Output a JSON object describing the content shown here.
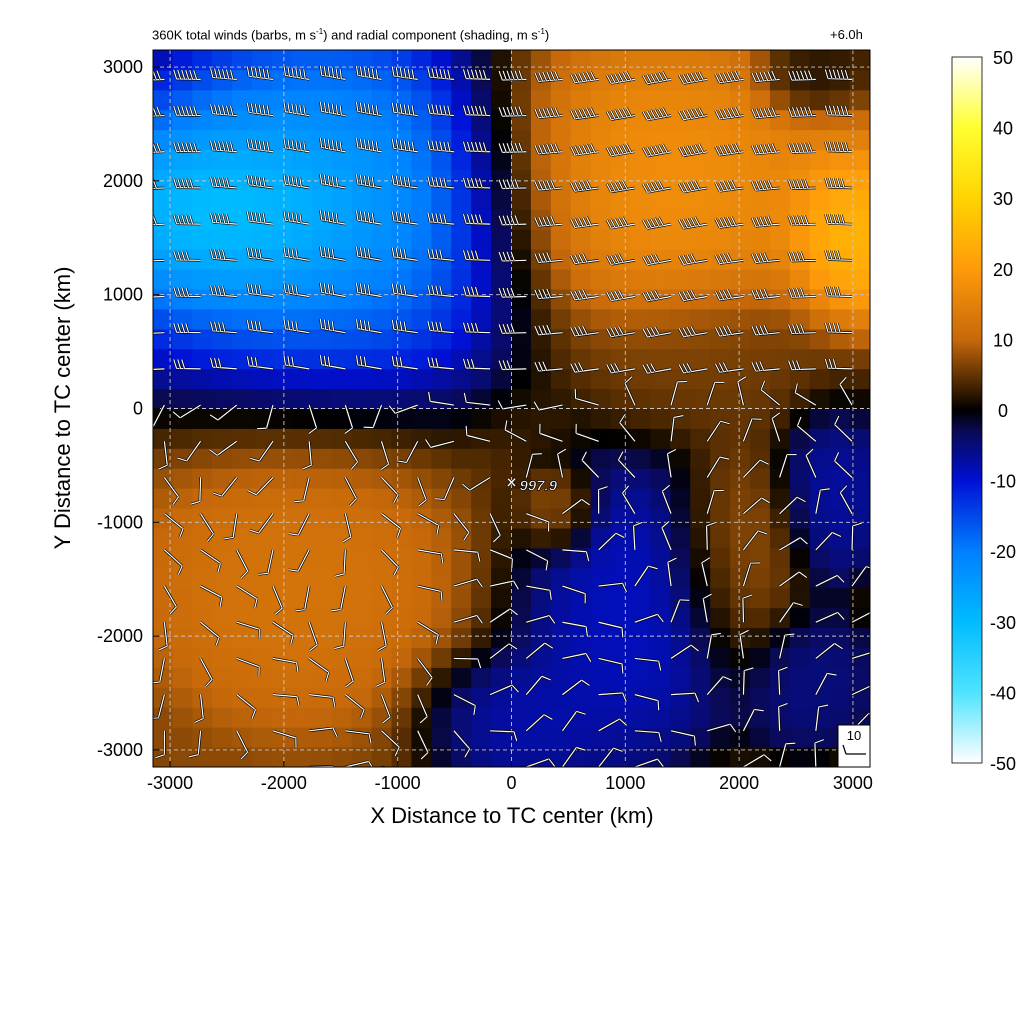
{
  "header": {
    "title_prefix": "360K total winds (barbs, m s",
    "title_mid": ") and radial component (shading, m s",
    "title_suffix": ")",
    "title_exp": "-1",
    "forecast_time": "+6.0h"
  },
  "center_marker": {
    "label": "997.9"
  },
  "barb_key": {
    "label": "10"
  },
  "chart_data": {
    "type": "heatmap",
    "xlabel": "X Distance to TC center (km)",
    "ylabel": "Y Distance to TC center (km)",
    "xlim": [
      -3150,
      3150
    ],
    "ylim": [
      -3150,
      3150
    ],
    "xticks": [
      -3000,
      -2000,
      -1000,
      0,
      1000,
      2000,
      3000
    ],
    "yticks": [
      -3000,
      -2000,
      -1000,
      0,
      1000,
      2000,
      3000
    ],
    "colorbar": {
      "range": [
        -50,
        50
      ],
      "ticks": [
        -50,
        -40,
        -30,
        -20,
        -10,
        0,
        10,
        20,
        30,
        40,
        50
      ],
      "stops": [
        {
          "value": -50,
          "color": "#ffffff"
        },
        {
          "value": -40,
          "color": "#4fe3ff"
        },
        {
          "value": -30,
          "color": "#00bcff"
        },
        {
          "value": -20,
          "color": "#007fff"
        },
        {
          "value": -10,
          "color": "#0010d6"
        },
        {
          "value": -3,
          "color": "#0a0a55"
        },
        {
          "value": 0,
          "color": "#000000"
        },
        {
          "value": 3,
          "color": "#3d2000"
        },
        {
          "value": 10,
          "color": "#c7690a"
        },
        {
          "value": 20,
          "color": "#ff9a0a"
        },
        {
          "value": 30,
          "color": "#ffd400"
        },
        {
          "value": 40,
          "color": "#ffff30"
        },
        {
          "value": 50,
          "color": "#ffffff"
        }
      ]
    },
    "grid": true,
    "field_blobs": [
      {
        "x": -2300,
        "y": 1700,
        "rx": 1100,
        "ry": 700,
        "value": -45
      },
      {
        "x": -1600,
        "y": 1900,
        "rx": 1300,
        "ry": 1100,
        "value": -28
      },
      {
        "x": -1800,
        "y": 1500,
        "rx": 1600,
        "ry": 1400,
        "value": -18
      },
      {
        "x": 1300,
        "y": 2000,
        "rx": 1500,
        "ry": 1200,
        "value": 20
      },
      {
        "x": 3000,
        "y": 1500,
        "rx": 500,
        "ry": 700,
        "value": 28
      },
      {
        "x": 2600,
        "y": 2900,
        "rx": 400,
        "ry": 300,
        "value": 0
      },
      {
        "x": -1900,
        "y": -1500,
        "rx": 1500,
        "ry": 1400,
        "value": 14
      },
      {
        "x": 400,
        "y": -900,
        "rx": 300,
        "ry": 350,
        "value": 10
      },
      {
        "x": 1000,
        "y": -1800,
        "rx": 900,
        "ry": 1100,
        "value": -10
      },
      {
        "x": 0,
        "y": -2700,
        "rx": 700,
        "ry": 500,
        "value": -9
      },
      {
        "x": 2800,
        "y": -700,
        "rx": 400,
        "ry": 700,
        "value": -8
      },
      {
        "x": 2600,
        "y": -2400,
        "rx": 500,
        "ry": 500,
        "value": -6
      },
      {
        "x": 2000,
        "y": -1300,
        "rx": 500,
        "ry": 900,
        "value": 9
      },
      {
        "x": 1800,
        "y": 400,
        "rx": 1200,
        "ry": 600,
        "value": 6
      }
    ],
    "center": {
      "x": 0,
      "y": -650
    },
    "barb_key_value": 10
  },
  "colors": {
    "barb": "#ffffff",
    "barb_outline": "#000000",
    "grid": "#c8c8c8"
  }
}
